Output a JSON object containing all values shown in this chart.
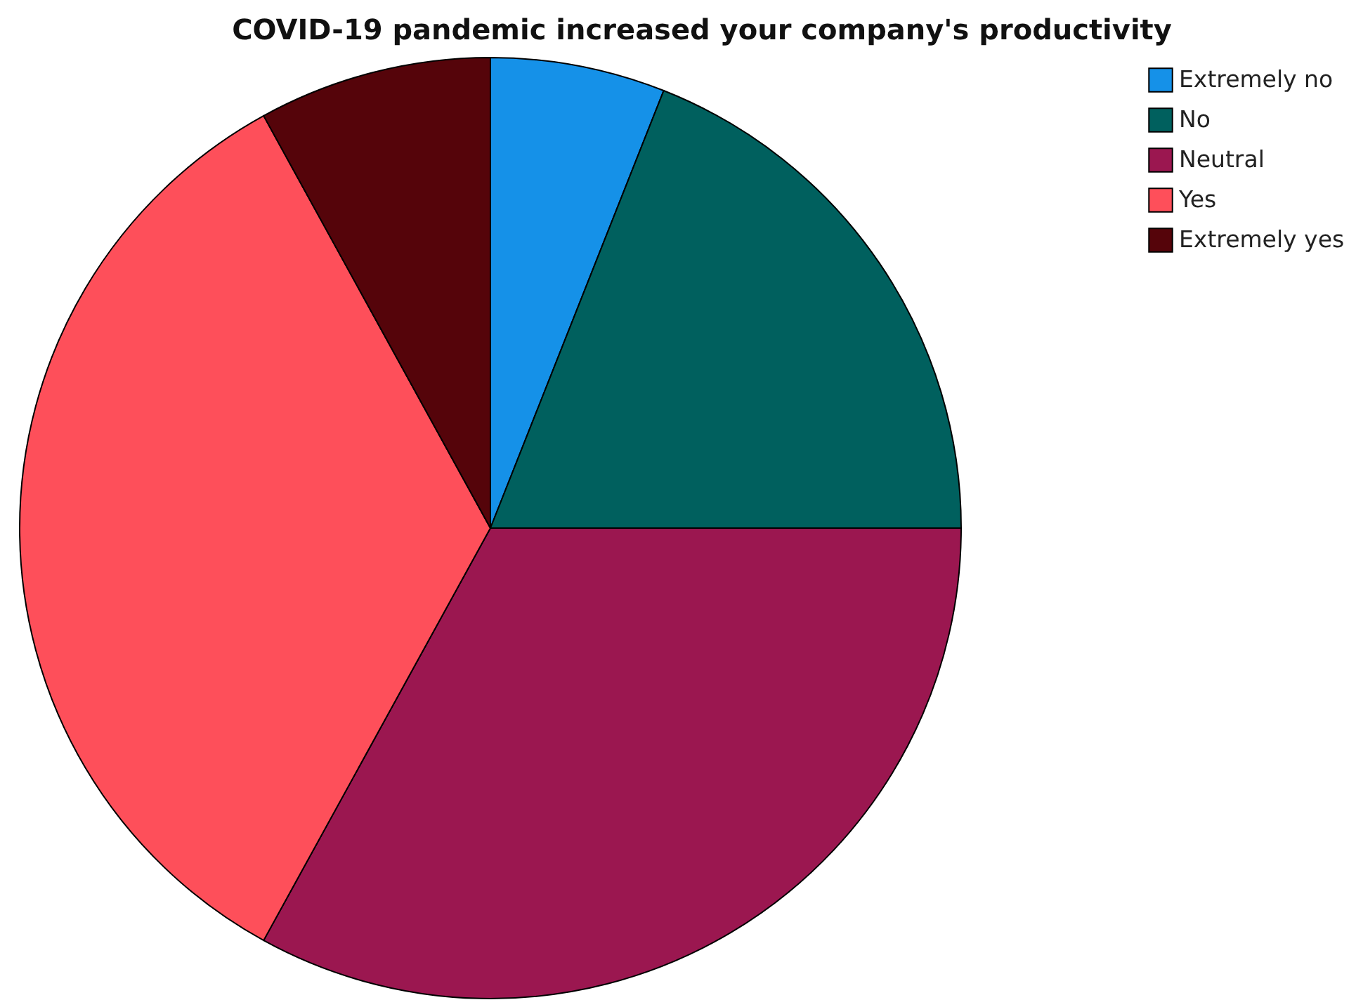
{
  "chart_data": {
    "type": "pie",
    "title": "COVID-19 pandemic increased your company's productivity",
    "categories": [
      "Extremely no",
      "No",
      "Neutral",
      "Yes",
      "Extremely yes"
    ],
    "values": [
      6,
      19,
      33,
      34,
      8
    ],
    "colors": [
      "#1591e8",
      "#00605e",
      "#9b1750",
      "#fe4f5a",
      "#55040a"
    ],
    "legend": "top right"
  }
}
